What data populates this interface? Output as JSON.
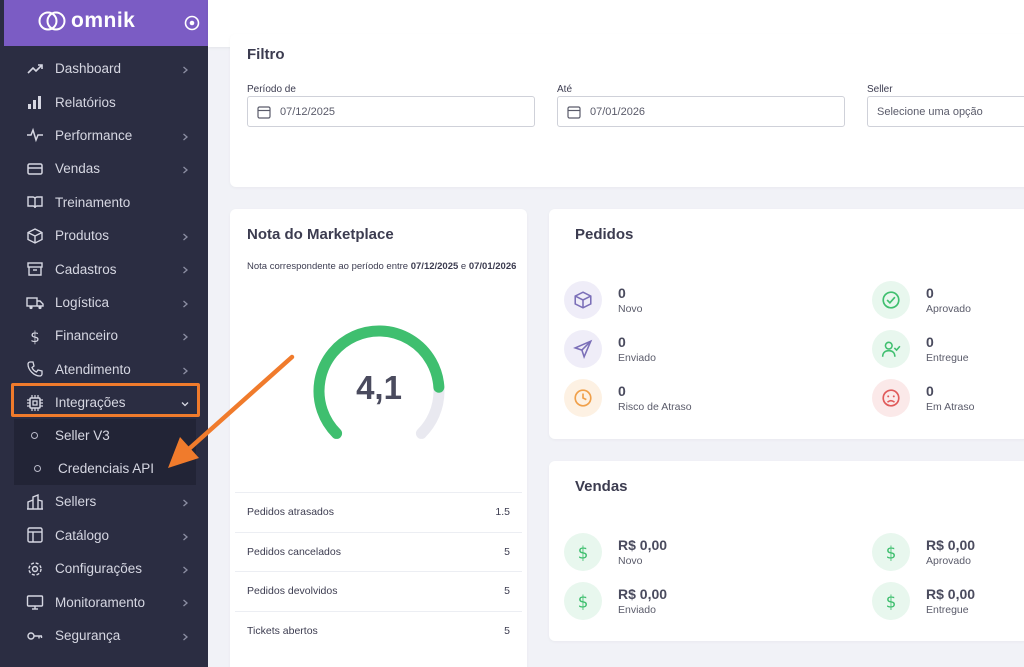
{
  "brand": {
    "name": "omnik"
  },
  "sidebar": {
    "items": [
      {
        "label": "Dashboard",
        "icon": "trend-icon",
        "chevron": true
      },
      {
        "label": "Relatórios",
        "icon": "bar-chart-icon",
        "chevron": false
      },
      {
        "label": "Performance",
        "icon": "pulse-icon",
        "chevron": true
      },
      {
        "label": "Vendas",
        "icon": "card-icon",
        "chevron": true
      },
      {
        "label": "Treinamento",
        "icon": "book-icon",
        "chevron": false
      },
      {
        "label": "Produtos",
        "icon": "box-icon",
        "chevron": true
      },
      {
        "label": "Cadastros",
        "icon": "archive-icon",
        "chevron": true
      },
      {
        "label": "Logística",
        "icon": "truck-icon",
        "chevron": true
      },
      {
        "label": "Financeiro",
        "icon": "dollar-icon",
        "chevron": true
      },
      {
        "label": "Atendimento",
        "icon": "phone-icon",
        "chevron": true
      },
      {
        "label": "Integrações",
        "icon": "chip-icon",
        "chevron": true,
        "expanded": true
      }
    ],
    "sub_items": [
      {
        "label": "Seller V3"
      },
      {
        "label": "Credenciais API"
      }
    ],
    "items_after": [
      {
        "label": "Sellers",
        "icon": "building-icon",
        "chevron": true
      },
      {
        "label": "Catálogo",
        "icon": "layout-icon",
        "chevron": true
      },
      {
        "label": "Configurações",
        "icon": "gear-icon",
        "chevron": true
      },
      {
        "label": "Monitoramento",
        "icon": "monitor-icon",
        "chevron": true
      },
      {
        "label": "Segurança",
        "icon": "key-icon",
        "chevron": true
      }
    ]
  },
  "filter": {
    "title": "Filtro",
    "period_from_label": "Período de",
    "period_from_value": "07/12/2025",
    "period_to_label": "Até",
    "period_to_value": "07/01/2026",
    "seller_label": "Seller",
    "seller_placeholder": "Selecione uma opção"
  },
  "nota": {
    "title": "Nota do Marketplace",
    "desc_prefix": "Nota correspondente ao período entre ",
    "date_from": "07/12/2025",
    "desc_mid": " e ",
    "date_to": "07/01/2026",
    "score": "4,1",
    "score_fraction": 0.82,
    "stats": [
      {
        "label": "Pedidos atrasados",
        "value": "1.5"
      },
      {
        "label": "Pedidos cancelados",
        "value": "5"
      },
      {
        "label": "Pedidos devolvidos",
        "value": "5"
      },
      {
        "label": "Tickets abertos",
        "value": "5"
      }
    ]
  },
  "pedidos": {
    "title": "Pedidos",
    "metrics": [
      {
        "value": "0",
        "label": "Novo",
        "icon": "box-icon",
        "color": "#7b6fb8",
        "bg": "#efedf8"
      },
      {
        "value": "0",
        "label": "Aprovado",
        "icon": "check-circle-icon",
        "color": "#3fbf6f",
        "bg": "#e8f7ee"
      },
      {
        "value": "0",
        "label": "Enviado",
        "icon": "send-icon",
        "color": "#7b6fb8",
        "bg": "#efedf8"
      },
      {
        "value": "0",
        "label": "Entregue",
        "icon": "user-check-icon",
        "color": "#3fbf6f",
        "bg": "#e8f7ee"
      },
      {
        "value": "0",
        "label": "Risco de Atraso",
        "icon": "clock-icon",
        "color": "#f0a04a",
        "bg": "#fdf1e3"
      },
      {
        "value": "0",
        "label": "Em Atraso",
        "icon": "sad-face-icon",
        "color": "#e05a5a",
        "bg": "#fbe9e9"
      }
    ]
  },
  "vendas": {
    "title": "Vendas",
    "metrics": [
      {
        "value": "R$ 0,00",
        "label": "Novo"
      },
      {
        "value": "R$ 0,00",
        "label": "Aprovado"
      },
      {
        "value": "R$ 0,00",
        "label": "Enviado"
      },
      {
        "value": "R$ 0,00",
        "label": "Entregue"
      }
    ],
    "icon_color": "#3fbf6f",
    "icon_bg": "#e8f7ee"
  },
  "colors": {
    "sidebar_bg": "#2b2d42",
    "brand_bg": "#7b5cc4",
    "highlight": "#f07b2c",
    "gauge_fill": "#3fbf6f",
    "gauge_track": "#e9e9f0"
  }
}
